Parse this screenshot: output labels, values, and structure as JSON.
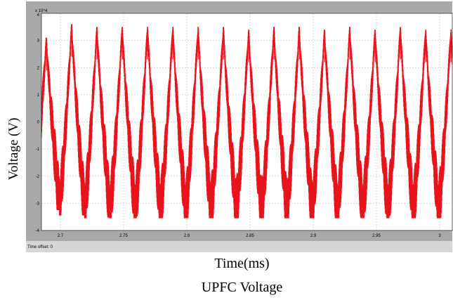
{
  "chart_data": {
    "type": "line",
    "title": "UPFC Voltage",
    "xlabel": "Time(ms)",
    "ylabel": "Voltage (V)",
    "y_multiplier": "x 10^4",
    "time_offset_label": "Time offset:  0",
    "xlim": [
      2.685,
      3.01
    ],
    "ylim": [
      -4,
      4
    ],
    "x_ticks": [
      2.7,
      2.75,
      2.8,
      2.85,
      2.9,
      2.95,
      3
    ],
    "x_tick_labels": [
      "2.7",
      "2.75",
      "2.8",
      "2.85",
      "2.9",
      "2.95",
      "3"
    ],
    "y_ticks": [
      4,
      3,
      2,
      1,
      0,
      -1,
      -2,
      -3,
      -4
    ],
    "y_tick_labels": [
      "4",
      "3",
      "2",
      "1",
      "0",
      "-1",
      "-2",
      "-3",
      "-4"
    ],
    "grid": true,
    "series": [
      {
        "color": "#e8141c",
        "period_ms": 0.02,
        "peak_times_ms": [
          2.689,
          2.709,
          2.729,
          2.749,
          2.769,
          2.789,
          2.809,
          2.829,
          2.849,
          2.869,
          2.889,
          2.909,
          2.929,
          2.949,
          2.969,
          2.989,
          3.009
        ],
        "max_values": [
          3.1,
          3.6,
          3.5,
          3.5,
          3.5,
          3.5,
          3.5,
          3.5,
          3.4,
          3.5,
          3.5,
          3.4,
          3.5,
          3.4,
          3.5,
          3.4,
          3.4
        ],
        "min_values": [
          -3.0,
          -3.2,
          -3.3,
          -3.3,
          -3.3,
          -3.3,
          -3.3,
          -3.3,
          -3.3,
          -3.3,
          -3.3,
          -3.3,
          -3.3,
          -3.3,
          -3.3,
          -3.3,
          -3.3
        ]
      }
    ],
    "colors": {
      "frame": "#a9a9a9",
      "axes_background": "#ffffff",
      "grid": "#b8b8b8",
      "status_bar": "#d6d6d6"
    }
  }
}
